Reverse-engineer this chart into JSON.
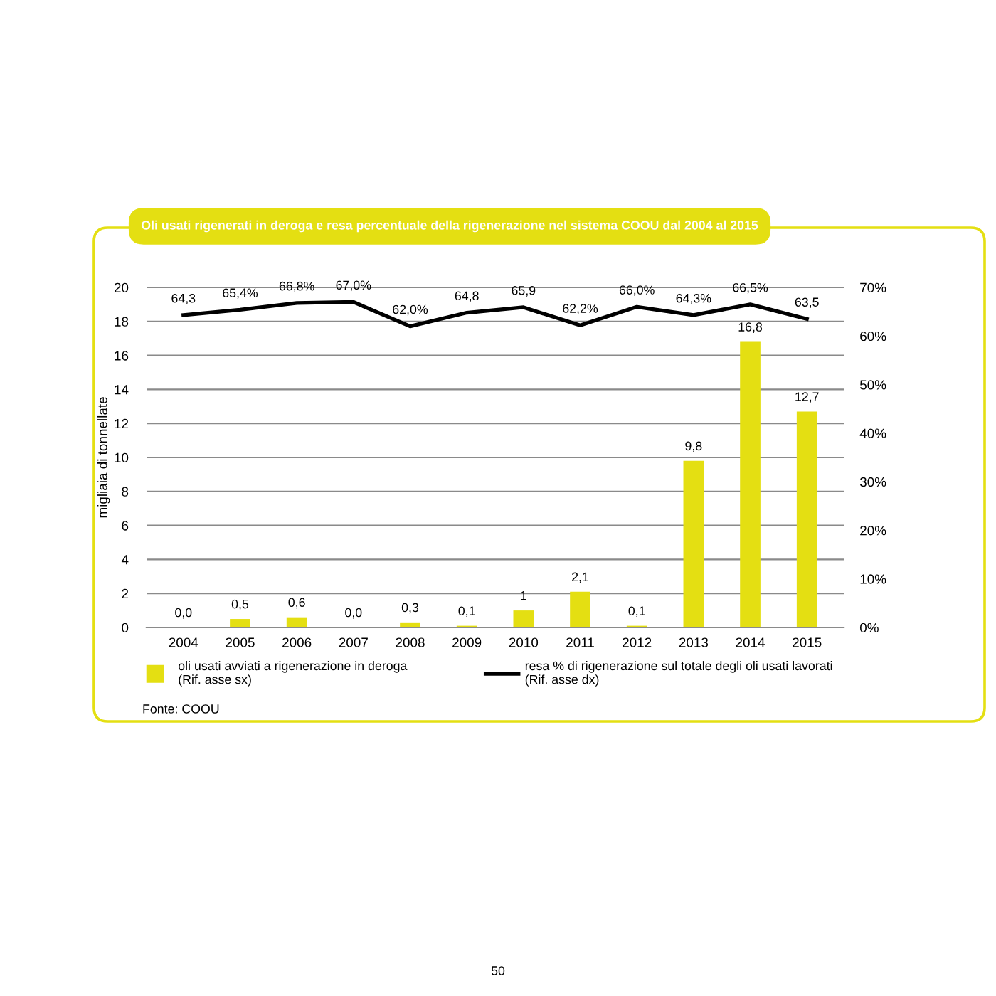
{
  "chart_data": {
    "type": "bar",
    "title": "Oli usati rigenerati in deroga e resa percentuale della rigenerazione nel sistema COOU dal 2004 al 2015",
    "ylabel": "migliaia di tonnellate",
    "categories": [
      "2004",
      "2005",
      "2006",
      "2007",
      "2008",
      "2009",
      "2010",
      "2011",
      "2012",
      "2013",
      "2014",
      "2015"
    ],
    "series": [
      {
        "name": "oli usati avviati a rigenerazione in deroga\n(Rif. asse sx)",
        "color": "#e4df12",
        "values": [
          0.0,
          0.5,
          0.6,
          0.0,
          0.3,
          0.1,
          1,
          2.1,
          0.1,
          9.8,
          16.8,
          12.7
        ],
        "value_labels": [
          "0,0",
          "0,5",
          "0,6",
          "0,0",
          "0,3",
          "0,1",
          "1",
          "2,1",
          "0,1",
          "9,8",
          "16,8",
          "12,7"
        ]
      },
      {
        "name": "resa % di rigenerazione sul totale degli oli usati lavorati\n(Rif. asse dx)",
        "type": "line",
        "axis": "y2",
        "color": "#000000",
        "values": [
          64.3,
          65.4,
          66.8,
          67.0,
          62.0,
          64.8,
          65.9,
          62.2,
          66.0,
          64.3,
          66.5,
          63.5
        ],
        "value_labels": [
          "64,3",
          "65,4%",
          "66,8%",
          "67,0%",
          "62,0%",
          "64,8",
          "65,9",
          "62,2%",
          "66,0%",
          "64,3%",
          "66,5%",
          "63,5"
        ]
      }
    ],
    "ylim": [
      0,
      20
    ],
    "yticks": [
      0,
      2,
      4,
      6,
      8,
      10,
      12,
      14,
      16,
      18,
      20
    ],
    "y2lim": [
      0,
      70
    ],
    "y2ticks": [
      {
        "value": 0,
        "label": "0%"
      },
      {
        "value": 10,
        "label": "10%"
      },
      {
        "value": 20,
        "label": "20%"
      },
      {
        "value": 30,
        "label": "30%"
      },
      {
        "value": 40,
        "label": "40%"
      },
      {
        "value": 50,
        "label": "50%"
      },
      {
        "value": 60,
        "label": "60%"
      },
      {
        "value": 70,
        "label": "70%"
      }
    ],
    "grid": "y",
    "legend": "bottom",
    "annotations": [
      "Fonte: COOU",
      "50"
    ]
  }
}
